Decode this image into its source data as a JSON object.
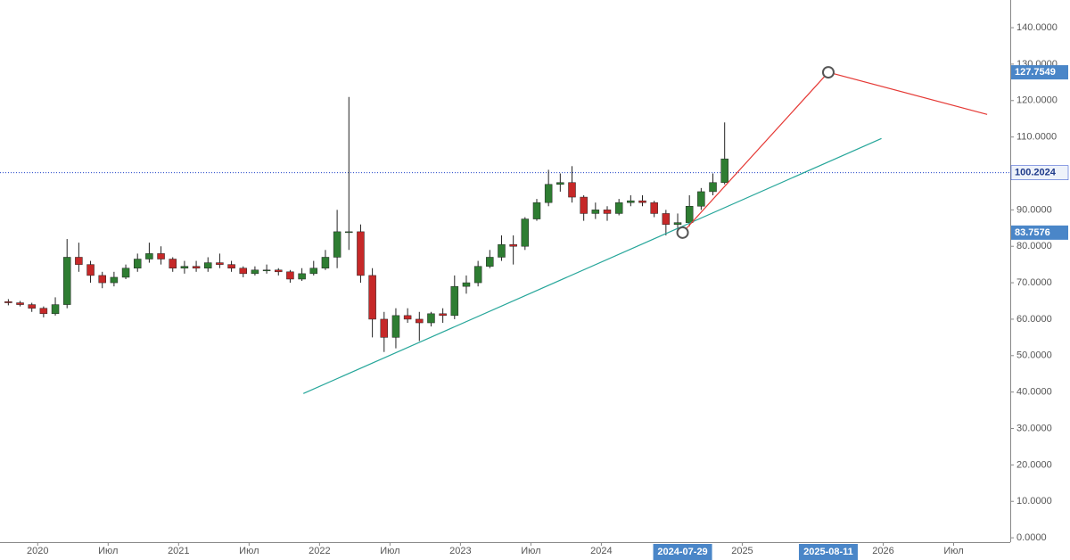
{
  "chart_data": {
    "type": "candlestick",
    "up_color": "#2e7d32",
    "down_color": "#c62828",
    "wick_color": "#222222",
    "x": [
      "2019-10",
      "2019-11",
      "2019-12",
      "2020-01",
      "2020-02",
      "2020-03",
      "2020-04",
      "2020-05",
      "2020-06",
      "2020-07",
      "2020-08",
      "2020-09",
      "2020-10",
      "2020-11",
      "2020-12",
      "2021-01",
      "2021-02",
      "2021-03",
      "2021-04",
      "2021-05",
      "2021-06",
      "2021-07",
      "2021-08",
      "2021-09",
      "2021-10",
      "2021-11",
      "2021-12",
      "2022-01",
      "2022-02",
      "2022-03",
      "2022-04",
      "2022-05",
      "2022-06",
      "2022-07",
      "2022-08",
      "2022-09",
      "2022-10",
      "2022-11",
      "2022-12",
      "2023-01",
      "2023-02",
      "2023-03",
      "2023-04",
      "2023-05",
      "2023-06",
      "2023-07",
      "2023-08",
      "2023-09",
      "2023-10",
      "2023-11",
      "2023-12",
      "2024-01",
      "2024-02",
      "2024-03",
      "2024-04",
      "2024-05",
      "2024-06",
      "2024-07",
      "2024-08",
      "2024-09",
      "2024-10",
      "2024-11"
    ],
    "open": [
      64.8,
      64.5,
      64,
      63,
      61.5,
      64,
      77,
      75,
      72,
      70,
      71.5,
      74,
      76.5,
      78,
      76.5,
      74,
      74.5,
      74,
      75.5,
      75,
      74,
      72.5,
      73.5,
      73.5,
      73,
      71,
      72.5,
      74,
      77,
      84,
      84,
      72,
      60,
      55,
      61,
      60,
      59,
      61.5,
      61,
      69,
      70,
      74.5,
      77,
      80.5,
      80,
      87.5,
      92,
      97,
      97.5,
      93.5,
      89,
      90,
      89,
      92,
      92.5,
      92,
      89,
      86,
      86.5,
      91,
      95,
      97.5
    ],
    "high": [
      65.5,
      65,
      64.5,
      63.5,
      66,
      82,
      81,
      76,
      73,
      73,
      75,
      78,
      81,
      80,
      77,
      76,
      76,
      77,
      78,
      76,
      74.5,
      74.5,
      75,
      74,
      73.5,
      74,
      76,
      79,
      90,
      121,
      86,
      74,
      62,
      63,
      63,
      62,
      62,
      63,
      72,
      72,
      76,
      79,
      83,
      83,
      88,
      93,
      101,
      100,
      102,
      94,
      92,
      91,
      93,
      94,
      94,
      92.5,
      90,
      89,
      94,
      96,
      100,
      114
    ],
    "low": [
      63.8,
      63.5,
      62,
      60.5,
      61,
      63,
      73,
      70,
      68.5,
      69,
      71,
      73,
      75.5,
      75,
      73,
      72.5,
      73,
      73,
      74,
      73,
      71.5,
      72,
      72.5,
      72,
      70,
      70.5,
      72,
      73.5,
      74,
      79,
      70,
      55,
      51,
      52,
      59,
      54,
      58,
      59,
      60,
      67,
      69,
      74,
      76,
      75,
      79,
      87,
      91,
      95,
      92,
      87,
      87.5,
      87,
      88.5,
      91,
      91,
      88,
      83,
      84,
      85.5,
      90,
      94,
      97
    ],
    "close": [
      64.5,
      64,
      63,
      61.5,
      64,
      77,
      75,
      72,
      70,
      71.5,
      74,
      76.5,
      78,
      76.5,
      74,
      74.5,
      74,
      75.5,
      75,
      74,
      72.5,
      73.5,
      73.5,
      73,
      71,
      72.5,
      74,
      77,
      84,
      84,
      72,
      60,
      55,
      61,
      60,
      59,
      61.5,
      61,
      69,
      70,
      74.5,
      77,
      80.5,
      80,
      87.5,
      92,
      97,
      97.5,
      93.5,
      89,
      90,
      89,
      92,
      92.5,
      92,
      89,
      86,
      86.5,
      91,
      95,
      97.5,
      104
    ],
    "xlim": [
      "2019-09-25",
      "2026-11-26"
    ],
    "xticks": [
      {
        "value": "2020-01-01",
        "label": "2020"
      },
      {
        "value": "2020-07-01",
        "label": "Июл"
      },
      {
        "value": "2021-01-01",
        "label": "2021"
      },
      {
        "value": "2021-07-01",
        "label": "Июл"
      },
      {
        "value": "2022-01-01",
        "label": "2022"
      },
      {
        "value": "2022-07-01",
        "label": "Июл"
      },
      {
        "value": "2023-01-01",
        "label": "2023"
      },
      {
        "value": "2023-07-01",
        "label": "Июл"
      },
      {
        "value": "2024-01-01",
        "label": "2024"
      },
      {
        "value": "2025-01-01",
        "label": "2025"
      },
      {
        "value": "2026-01-01",
        "label": "2026"
      },
      {
        "value": "2026-07-01",
        "label": "Июл"
      }
    ],
    "ylim": [
      -1.2,
      147.6
    ],
    "yticks": [
      {
        "value": 0,
        "label": "0.0000"
      },
      {
        "value": 10,
        "label": "10.0000"
      },
      {
        "value": 20,
        "label": "20.0000"
      },
      {
        "value": 30,
        "label": "30.0000"
      },
      {
        "value": 40,
        "label": "40.0000"
      },
      {
        "value": 50,
        "label": "50.0000"
      },
      {
        "value": 60,
        "label": "60.0000"
      },
      {
        "value": 70,
        "label": "70.0000"
      },
      {
        "value": 80,
        "label": "80.0000"
      },
      {
        "value": 90,
        "label": "90.0000"
      },
      {
        "value": 110,
        "label": "110.0000"
      },
      {
        "value": 120,
        "label": "120.0000"
      },
      {
        "value": 130,
        "label": "130.0000"
      },
      {
        "value": 140,
        "label": "140.0000"
      }
    ],
    "hline": {
      "value": 100.2024,
      "color": "#1e40c8"
    },
    "drawings": [
      {
        "color": "#26a69a",
        "handles": false,
        "points": [
          {
            "x": "2021-11-20",
            "y": 39.6
          },
          {
            "x": "2025-12-27",
            "y": 109.6
          }
        ]
      },
      {
        "color": "#e53935",
        "handles": true,
        "points": [
          {
            "x": "2024-07-29",
            "y": 83.7576
          },
          {
            "x": "2025-08-11",
            "y": 127.7549
          },
          {
            "x": "2026-09-27",
            "y": 116.2
          }
        ]
      }
    ]
  }
}
